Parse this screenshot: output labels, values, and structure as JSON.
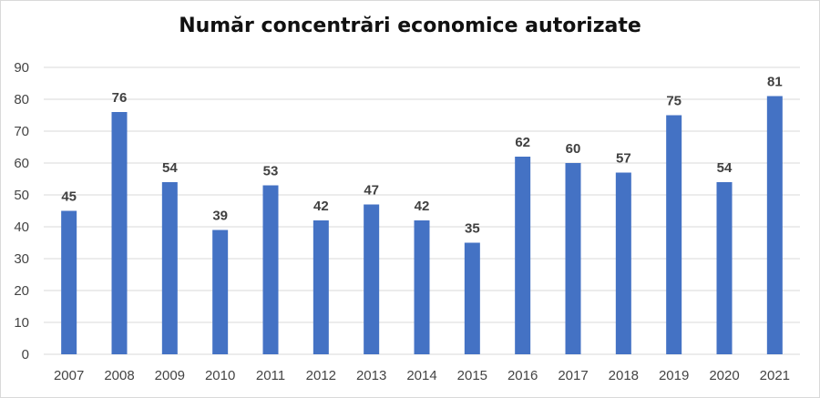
{
  "chart_data": {
    "type": "bar",
    "title": "Număr concentrări economice autorizate",
    "categories": [
      "2007",
      "2008",
      "2009",
      "2010",
      "2011",
      "2012",
      "2013",
      "2014",
      "2015",
      "2016",
      "2017",
      "2018",
      "2019",
      "2020",
      "2021"
    ],
    "values": [
      45,
      76,
      54,
      39,
      53,
      42,
      47,
      42,
      35,
      62,
      60,
      57,
      75,
      54,
      81
    ],
    "ylim": [
      0,
      90
    ],
    "yticks": [
      0,
      10,
      20,
      30,
      40,
      50,
      60,
      70,
      80,
      90
    ],
    "grid": true,
    "legend": "none",
    "bar_color": "#4472c4",
    "grid_color": "#d9d9d9"
  }
}
